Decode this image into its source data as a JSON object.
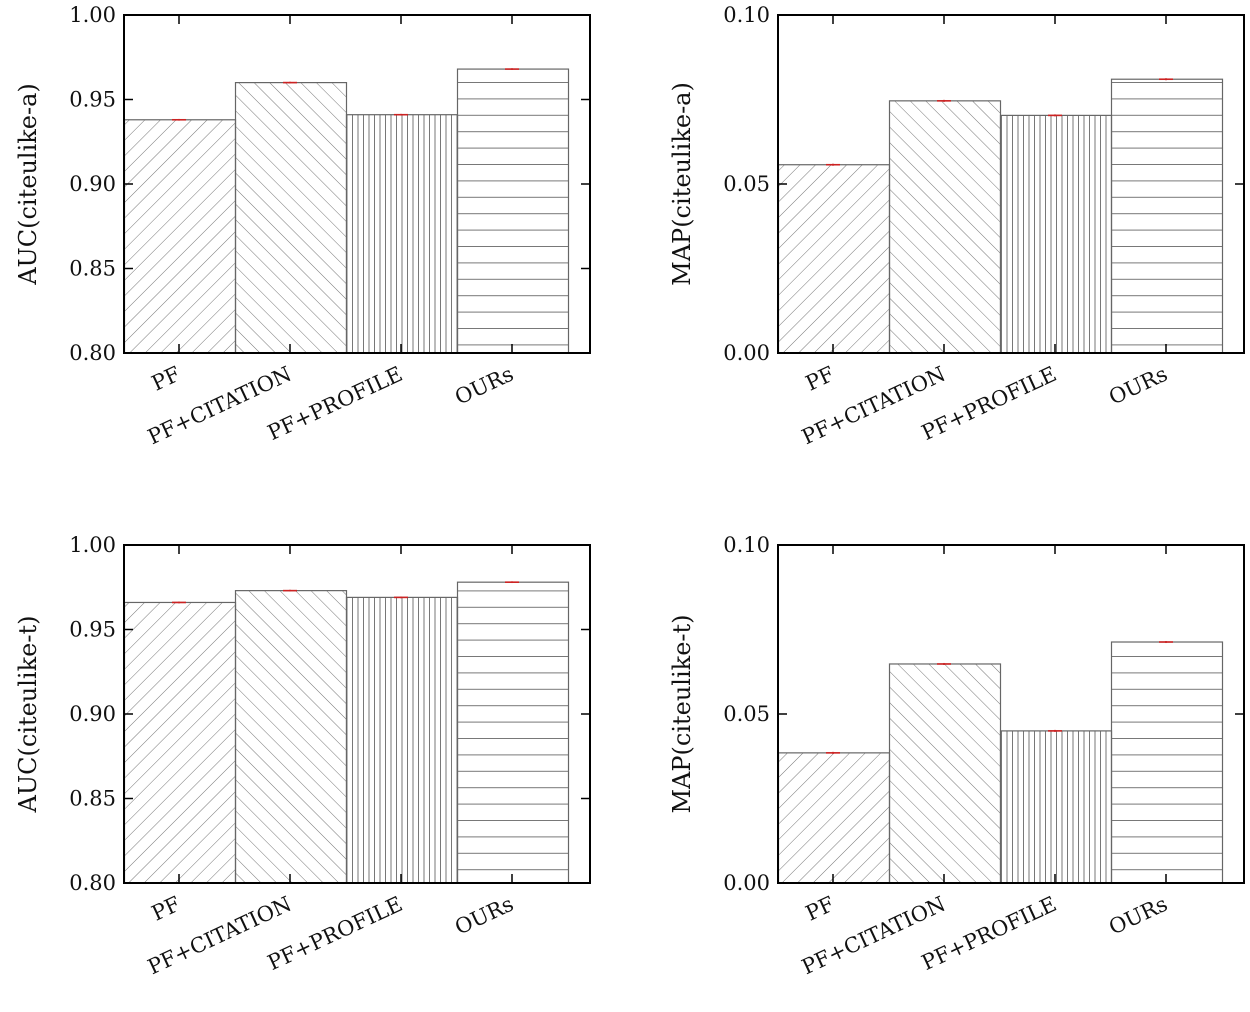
{
  "chart_data": [
    {
      "type": "bar",
      "categories": [
        "PF",
        "PF+CITATION",
        "PF+PROFILE",
        "OURs"
      ],
      "values": [
        0.938,
        0.96,
        0.941,
        0.968
      ],
      "errors": [
        0.0005,
        0.0005,
        0.0005,
        0.0005
      ],
      "ylabel": "AUC(citeulike-a)",
      "ylim": [
        0.8,
        1.0
      ],
      "yticks": [
        "0.80",
        "0.85",
        "0.90",
        "0.95",
        "1.00"
      ],
      "hatches": [
        "forward-diagonal",
        "back-diagonal",
        "vertical",
        "horizontal"
      ]
    },
    {
      "type": "bar",
      "categories": [
        "PF",
        "PF+CITATION",
        "PF+PROFILE",
        "OURs"
      ],
      "values": [
        0.0557,
        0.0746,
        0.0703,
        0.081
      ],
      "errors": [
        0.0003,
        0.0003,
        0.0003,
        0.0003
      ],
      "ylabel": "MAP(citeulike-a)",
      "ylim": [
        0.0,
        0.1
      ],
      "yticks": [
        "0.00",
        "0.05",
        "0.10"
      ],
      "hatches": [
        "forward-diagonal",
        "back-diagonal",
        "vertical",
        "horizontal"
      ]
    },
    {
      "type": "bar",
      "categories": [
        "PF",
        "PF+CITATION",
        "PF+PROFILE",
        "OURs"
      ],
      "values": [
        0.966,
        0.973,
        0.969,
        0.978
      ],
      "errors": [
        0.0005,
        0.0005,
        0.0005,
        0.0005
      ],
      "ylabel": "AUC(citeulike-t)",
      "ylim": [
        0.8,
        1.0
      ],
      "yticks": [
        "0.80",
        "0.85",
        "0.90",
        "0.95",
        "1.00"
      ],
      "hatches": [
        "forward-diagonal",
        "back-diagonal",
        "vertical",
        "horizontal"
      ]
    },
    {
      "type": "bar",
      "categories": [
        "PF",
        "PF+CITATION",
        "PF+PROFILE",
        "OURs"
      ],
      "values": [
        0.0385,
        0.0648,
        0.045,
        0.0713
      ],
      "errors": [
        0.0003,
        0.0003,
        0.0003,
        0.0003
      ],
      "ylabel": "MAP(citeulike-t)",
      "ylim": [
        0.0,
        0.1
      ],
      "yticks": [
        "0.00",
        "0.05",
        "0.10"
      ],
      "hatches": [
        "forward-diagonal",
        "back-diagonal",
        "vertical",
        "horizontal"
      ]
    }
  ],
  "colors": {
    "bar_stroke": "#666666",
    "hatch": "#777777",
    "error": "#cc2222",
    "axis": "#000000"
  }
}
